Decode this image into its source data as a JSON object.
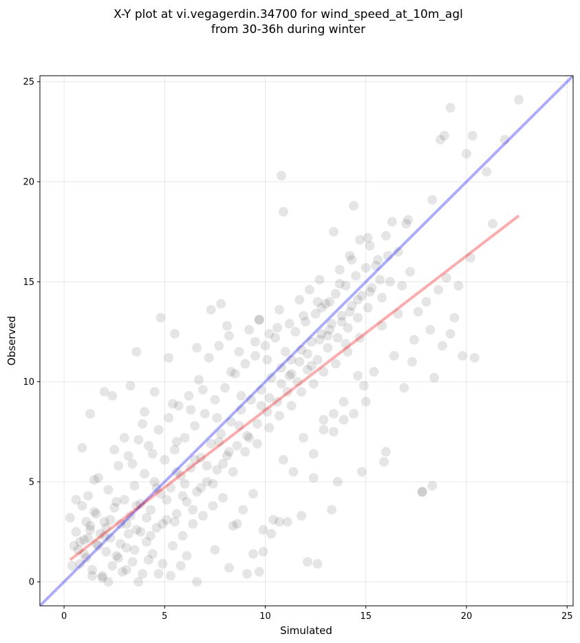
{
  "chart_data": {
    "type": "scatter",
    "title": [
      "X-Y plot at vi.vegagerdin.34700 for wind_speed_at_10m_agl",
      "from 30-36h during winter"
    ],
    "xlabel": "Simulated",
    "ylabel": "Observed",
    "xlim": [
      -1.2,
      25.3
    ],
    "ylim": [
      -1.2,
      25.3
    ],
    "xticks": [
      0,
      5,
      10,
      15,
      20,
      25
    ],
    "yticks": [
      0,
      5,
      10,
      15,
      20,
      25
    ],
    "grid": true,
    "colors": {
      "points": "#000000",
      "identity_line": "#0000ff",
      "fit_line": "#ff0000"
    },
    "identity_line": {
      "x": [
        -1.2,
        25.3
      ],
      "y": [
        -1.2,
        25.3
      ]
    },
    "fit_line": {
      "x": [
        0.3,
        22.6
      ],
      "y": [
        1.1,
        18.3
      ]
    },
    "points": [
      [
        0.3,
        3.2
      ],
      [
        0.5,
        1.8
      ],
      [
        0.6,
        2.5
      ],
      [
        0.8,
        0.9
      ],
      [
        0.9,
        3.8
      ],
      [
        1.0,
        2.1
      ],
      [
        1.1,
        1.2
      ],
      [
        1.2,
        4.3
      ],
      [
        1.3,
        2.8
      ],
      [
        1.4,
        0.6
      ],
      [
        1.5,
        3.5
      ],
      [
        1.6,
        1.9
      ],
      [
        1.7,
        5.2
      ],
      [
        1.8,
        2.4
      ],
      [
        1.9,
        0.3
      ],
      [
        2.0,
        3.0
      ],
      [
        2.1,
        1.5
      ],
      [
        2.2,
        4.6
      ],
      [
        2.3,
        2.2
      ],
      [
        2.4,
        0.8
      ],
      [
        2.5,
        3.7
      ],
      [
        2.6,
        1.3
      ],
      [
        2.7,
        5.8
      ],
      [
        2.8,
        2.9
      ],
      [
        2.9,
        0.5
      ],
      [
        3.0,
        4.1
      ],
      [
        3.1,
        1.7
      ],
      [
        3.2,
        6.3
      ],
      [
        3.3,
        3.3
      ],
      [
        3.4,
        1.0
      ],
      [
        3.5,
        4.8
      ],
      [
        3.6,
        2.6
      ],
      [
        3.7,
        7.1
      ],
      [
        3.8,
        3.9
      ],
      [
        3.9,
        0.4
      ],
      [
        4.0,
        5.4
      ],
      [
        4.1,
        2.0
      ],
      [
        4.2,
        6.8
      ],
      [
        4.3,
        3.6
      ],
      [
        4.4,
        1.4
      ],
      [
        4.5,
        5.0
      ],
      [
        4.6,
        2.7
      ],
      [
        4.7,
        7.6
      ],
      [
        4.8,
        4.4
      ],
      [
        4.9,
        0.9
      ],
      [
        5.0,
        6.1
      ],
      [
        5.1,
        3.1
      ],
      [
        5.2,
        8.2
      ],
      [
        5.3,
        4.7
      ],
      [
        5.4,
        1.8
      ],
      [
        5.5,
        6.6
      ],
      [
        5.6,
        3.4
      ],
      [
        5.7,
        8.8
      ],
      [
        5.8,
        5.3
      ],
      [
        5.9,
        2.3
      ],
      [
        6.0,
        7.2
      ],
      [
        6.1,
        4.0
      ],
      [
        6.2,
        9.3
      ],
      [
        6.3,
        5.7
      ],
      [
        6.4,
        2.9
      ],
      [
        6.5,
        7.8
      ],
      [
        6.6,
        4.5
      ],
      [
        6.7,
        10.1
      ],
      [
        6.8,
        6.2
      ],
      [
        6.9,
        3.3
      ],
      [
        7.0,
        8.4
      ],
      [
        7.1,
        5.0
      ],
      [
        7.2,
        11.2
      ],
      [
        7.3,
        6.9
      ],
      [
        7.4,
        3.8
      ],
      [
        7.5,
        9.1
      ],
      [
        7.6,
        5.6
      ],
      [
        7.7,
        11.8
      ],
      [
        7.8,
        7.4
      ],
      [
        7.9,
        4.2
      ],
      [
        8.0,
        9.7
      ],
      [
        8.1,
        6.3
      ],
      [
        8.2,
        12.3
      ],
      [
        8.3,
        8.0
      ],
      [
        8.4,
        2.8
      ],
      [
        8.5,
        10.4
      ],
      [
        8.6,
        6.8
      ],
      [
        8.7,
        11.5
      ],
      [
        8.8,
        8.6
      ],
      [
        8.9,
        3.6
      ],
      [
        9.0,
        10.9
      ],
      [
        9.1,
        7.3
      ],
      [
        9.2,
        12.6
      ],
      [
        9.3,
        9.1
      ],
      [
        9.4,
        4.4
      ],
      [
        9.5,
        11.3
      ],
      [
        9.6,
        7.9
      ],
      [
        9.7,
        13.1
      ],
      [
        9.8,
        9.6
      ],
      [
        9.9,
        2.6
      ],
      [
        10.0,
        11.8
      ],
      [
        10.1,
        8.5
      ],
      [
        10.2,
        12.4
      ],
      [
        10.3,
        10.2
      ],
      [
        10.4,
        3.1
      ],
      [
        10.5,
        12.2
      ],
      [
        10.6,
        9.0
      ],
      [
        10.7,
        13.6
      ],
      [
        10.8,
        10.7
      ],
      [
        10.9,
        6.1
      ],
      [
        11.0,
        11.5
      ],
      [
        11.1,
        9.5
      ],
      [
        11.2,
        12.9
      ],
      [
        11.3,
        11.1
      ],
      [
        11.4,
        5.5
      ],
      [
        11.5,
        12.5
      ],
      [
        11.6,
        10.0
      ],
      [
        11.7,
        14.1
      ],
      [
        11.8,
        11.6
      ],
      [
        11.9,
        7.2
      ],
      [
        12.0,
        13.0
      ],
      [
        12.1,
        10.6
      ],
      [
        12.2,
        14.6
      ],
      [
        12.3,
        12.0
      ],
      [
        12.4,
        6.4
      ],
      [
        12.5,
        13.4
      ],
      [
        12.6,
        11.1
      ],
      [
        12.7,
        15.1
      ],
      [
        12.8,
        12.4
      ],
      [
        12.9,
        8.1
      ],
      [
        13.0,
        13.9
      ],
      [
        13.1,
        11.7
      ],
      [
        13.2,
        14.0
      ],
      [
        13.3,
        12.9
      ],
      [
        13.4,
        7.5
      ],
      [
        13.5,
        14.4
      ],
      [
        13.6,
        12.2
      ],
      [
        13.7,
        15.6
      ],
      [
        13.8,
        13.3
      ],
      [
        13.9,
        9.0
      ],
      [
        14.0,
        14.8
      ],
      [
        14.1,
        12.7
      ],
      [
        14.2,
        16.3
      ],
      [
        14.3,
        13.8
      ],
      [
        14.4,
        8.4
      ],
      [
        14.5,
        15.3
      ],
      [
        14.6,
        13.2
      ],
      [
        14.7,
        17.1
      ],
      [
        14.8,
        14.3
      ],
      [
        14.9,
        9.8
      ],
      [
        15.0,
        15.7
      ],
      [
        15.1,
        13.7
      ],
      [
        15.2,
        16.8
      ],
      [
        15.3,
        14.7
      ],
      [
        15.4,
        10.5
      ],
      [
        15.6,
        16.1
      ],
      [
        15.8,
        14.2
      ],
      [
        16.0,
        17.3
      ],
      [
        16.2,
        15.0
      ],
      [
        16.4,
        11.3
      ],
      [
        16.6,
        16.5
      ],
      [
        16.8,
        14.8
      ],
      [
        17.0,
        17.9
      ],
      [
        17.2,
        15.5
      ],
      [
        17.4,
        12.1
      ],
      [
        17.6,
        13.5
      ],
      [
        17.8,
        4.5
      ],
      [
        18.0,
        14.0
      ],
      [
        18.2,
        12.6
      ],
      [
        18.4,
        10.2
      ],
      [
        18.6,
        14.6
      ],
      [
        18.8,
        11.8
      ],
      [
        19.0,
        15.2
      ],
      [
        19.2,
        12.4
      ],
      [
        19.4,
        13.2
      ],
      [
        19.6,
        14.8
      ],
      [
        19.8,
        11.3
      ],
      [
        20.0,
        21.4
      ],
      [
        20.2,
        16.2
      ],
      [
        20.4,
        11.2
      ],
      [
        21.0,
        20.5
      ],
      [
        21.3,
        17.9
      ],
      [
        21.9,
        22.1
      ],
      [
        22.6,
        24.1
      ],
      [
        19.2,
        23.7
      ],
      [
        18.7,
        22.1
      ],
      [
        18.9,
        22.3
      ],
      [
        20.3,
        22.3
      ],
      [
        18.3,
        19.1
      ],
      [
        10.8,
        20.3
      ],
      [
        10.9,
        18.5
      ],
      [
        3.6,
        11.5
      ],
      [
        1.3,
        8.4
      ],
      [
        4.8,
        13.2
      ],
      [
        6.6,
        11.7
      ],
      [
        16.3,
        18.0
      ],
      [
        17.1,
        18.1
      ],
      [
        14.4,
        18.8
      ],
      [
        15.1,
        17.2
      ],
      [
        18.3,
        4.8
      ],
      [
        17.8,
        4.5
      ],
      [
        14.8,
        5.5
      ],
      [
        12.6,
        0.9
      ],
      [
        12.1,
        1.0
      ],
      [
        9.7,
        0.5
      ],
      [
        9.1,
        0.4
      ],
      [
        5.3,
        0.3
      ],
      [
        6.6,
        0.0
      ],
      [
        2.2,
        0.0
      ],
      [
        3.7,
        0.0
      ],
      [
        0.9,
        6.7
      ],
      [
        1.5,
        5.1
      ],
      [
        2.0,
        9.5
      ],
      [
        2.4,
        9.3
      ],
      [
        3.3,
        9.8
      ],
      [
        4.0,
        8.5
      ],
      [
        4.5,
        9.5
      ],
      [
        5.4,
        8.9
      ],
      [
        5.2,
        11.2
      ],
      [
        5.5,
        12.4
      ],
      [
        7.3,
        13.6
      ],
      [
        7.8,
        13.9
      ],
      [
        8.1,
        12.8
      ],
      [
        9.7,
        13.1
      ],
      [
        12.6,
        14.0
      ],
      [
        13.4,
        17.5
      ],
      [
        14.3,
        16.1
      ],
      [
        15.5,
        15.8
      ],
      [
        16.1,
        16.3
      ],
      [
        15.8,
        12.8
      ],
      [
        16.6,
        13.4
      ],
      [
        17.3,
        11.0
      ],
      [
        16.9,
        9.7
      ],
      [
        16.0,
        6.5
      ],
      [
        15.9,
        6.0
      ],
      [
        15.0,
        9.0
      ],
      [
        14.6,
        10.3
      ],
      [
        13.9,
        8.1
      ],
      [
        13.4,
        8.4
      ],
      [
        12.9,
        7.6
      ],
      [
        12.4,
        5.2
      ],
      [
        11.8,
        3.3
      ],
      [
        13.3,
        3.6
      ],
      [
        13.6,
        5.0
      ],
      [
        11.1,
        3.0
      ],
      [
        10.7,
        3.0
      ],
      [
        10.3,
        2.4
      ],
      [
        9.9,
        1.5
      ],
      [
        9.4,
        1.4
      ],
      [
        8.6,
        2.9
      ],
      [
        7.5,
        1.6
      ],
      [
        8.2,
        0.7
      ],
      [
        6.1,
        1.3
      ],
      [
        5.8,
        0.8
      ],
      [
        4.7,
        0.4
      ],
      [
        4.2,
        1.1
      ],
      [
        3.1,
        0.6
      ],
      [
        2.7,
        1.2
      ],
      [
        1.9,
        0.2
      ],
      [
        1.4,
        0.3
      ],
      [
        0.7,
        1.6
      ],
      [
        0.4,
        0.8
      ],
      [
        0.6,
        4.1
      ],
      [
        1.1,
        3.0
      ],
      [
        2.5,
        6.6
      ],
      [
        3.0,
        7.2
      ],
      [
        3.4,
        5.9
      ],
      [
        3.9,
        7.9
      ],
      [
        4.4,
        6.4
      ],
      [
        5.6,
        7.0
      ],
      [
        6.3,
        8.6
      ],
      [
        6.9,
        9.6
      ],
      [
        7.6,
        8.2
      ],
      [
        8.3,
        10.5
      ],
      [
        8.8,
        9.3
      ],
      [
        9.5,
        12.0
      ],
      [
        10.1,
        11.1
      ],
      [
        10.6,
        12.7
      ],
      [
        11.3,
        10.4
      ],
      [
        11.9,
        13.3
      ],
      [
        12.3,
        10.8
      ],
      [
        12.8,
        13.7
      ],
      [
        13.1,
        12.3
      ],
      [
        13.7,
        14.9
      ],
      [
        14.1,
        11.5
      ],
      [
        1.2,
        2.2
      ],
      [
        1.6,
        3.4
      ],
      [
        2.1,
        2.7
      ],
      [
        2.6,
        4.0
      ],
      [
        3.2,
        2.4
      ],
      [
        3.6,
        3.8
      ],
      [
        4.1,
        3.2
      ],
      [
        4.6,
        4.7
      ],
      [
        5.1,
        4.1
      ],
      [
        5.6,
        5.5
      ],
      [
        6.0,
        4.9
      ],
      [
        6.5,
        6.1
      ],
      [
        7.1,
        5.8
      ],
      [
        7.7,
        7.0
      ],
      [
        8.2,
        6.5
      ],
      [
        8.7,
        7.8
      ],
      [
        9.2,
        7.2
      ],
      [
        9.8,
        8.8
      ],
      [
        10.2,
        9.2
      ],
      [
        10.8,
        9.9
      ],
      [
        11.2,
        10.3
      ],
      [
        11.7,
        11.0
      ],
      [
        12.1,
        11.4
      ],
      [
        12.7,
        12.1
      ],
      [
        13.2,
        12.6
      ],
      [
        13.8,
        13.0
      ],
      [
        14.2,
        13.5
      ],
      [
        14.6,
        14.1
      ],
      [
        15.2,
        14.5
      ],
      [
        15.7,
        15.1
      ],
      [
        0.8,
        2.0
      ],
      [
        1.0,
        1.4
      ],
      [
        1.3,
        2.6
      ],
      [
        1.7,
        1.8
      ],
      [
        2.0,
        2.3
      ],
      [
        2.3,
        3.1
      ],
      [
        2.8,
        1.9
      ],
      [
        3.1,
        2.9
      ],
      [
        3.5,
        1.6
      ],
      [
        3.8,
        2.5
      ],
      [
        4.3,
        2.3
      ],
      [
        4.9,
        2.9
      ],
      [
        5.5,
        3.0
      ],
      [
        5.9,
        4.3
      ],
      [
        6.4,
        3.6
      ],
      [
        6.8,
        4.7
      ],
      [
        7.4,
        4.9
      ],
      [
        7.9,
        5.9
      ],
      [
        8.4,
        5.5
      ],
      [
        9.0,
        6.5
      ],
      [
        9.6,
        6.9
      ],
      [
        10.2,
        7.7
      ],
      [
        10.7,
        8.3
      ],
      [
        11.3,
        8.8
      ],
      [
        11.8,
        9.5
      ],
      [
        12.4,
        9.9
      ],
      [
        12.9,
        10.5
      ],
      [
        13.5,
        10.9
      ],
      [
        14.0,
        11.9
      ],
      [
        14.7,
        12.2
      ]
    ]
  }
}
